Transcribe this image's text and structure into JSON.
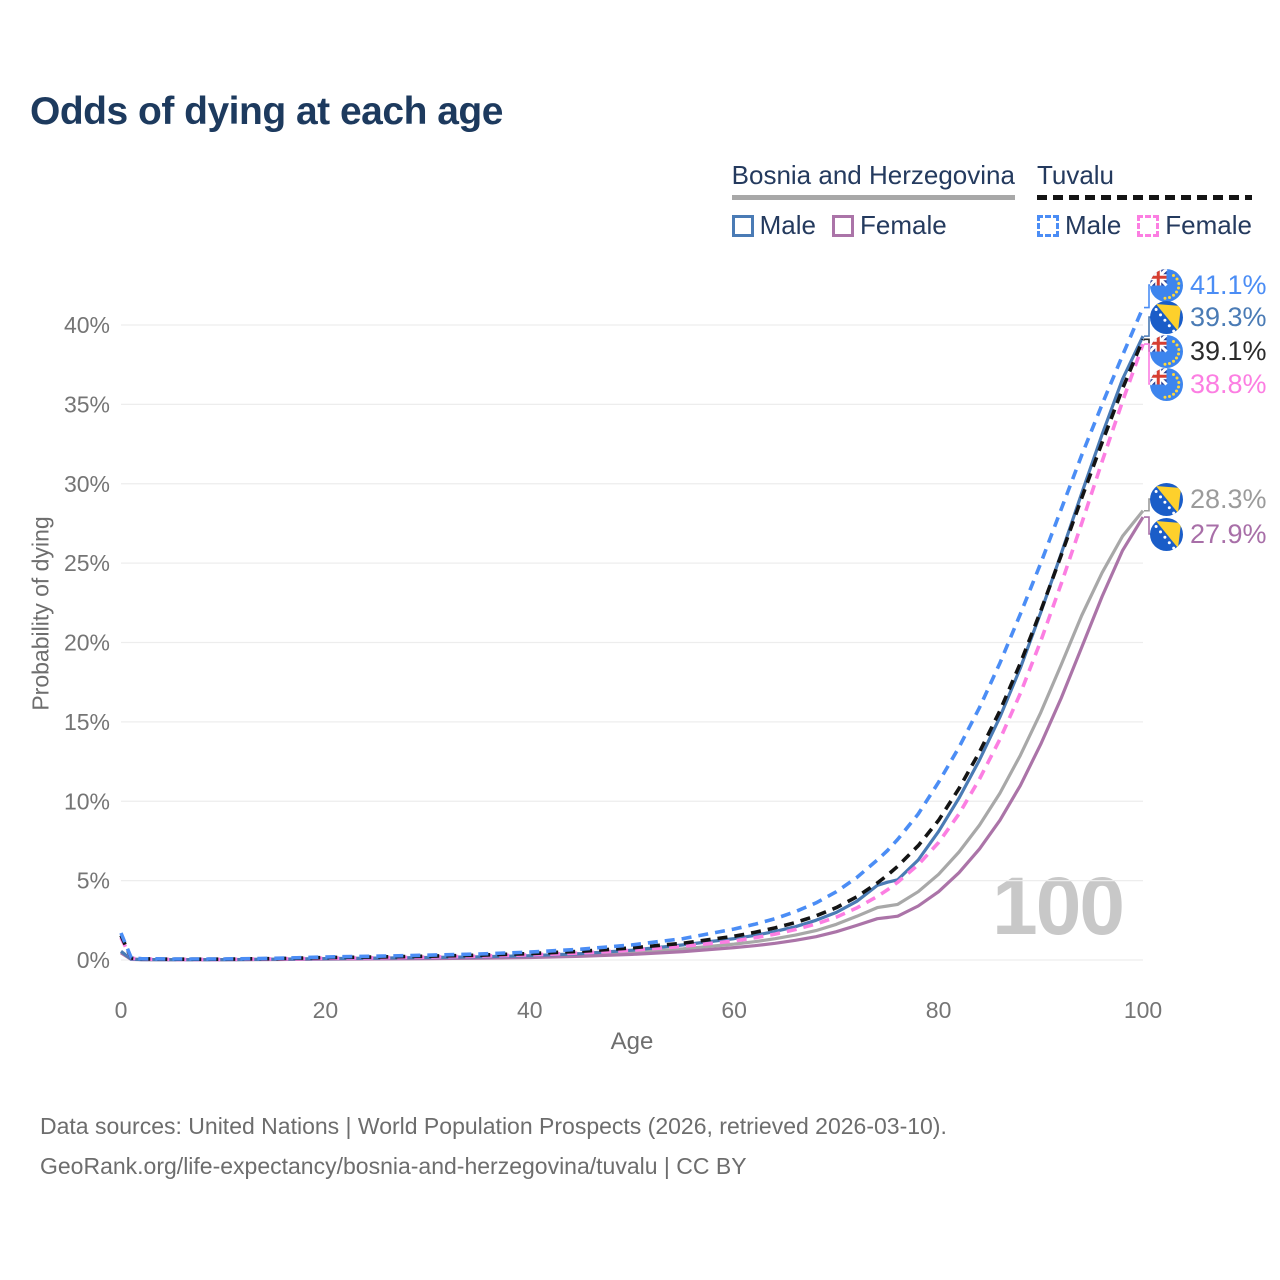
{
  "header": {
    "title": "Odds of dying at each age",
    "title_color": "#1d3a5e"
  },
  "legend": {
    "groups": [
      {
        "label": "Bosnia and Herzegovina",
        "line_style": "solid",
        "line_color": "#a8a8a8",
        "items": [
          {
            "label": "Male",
            "sex": "male",
            "color": "#4a7bb5"
          },
          {
            "label": "Female",
            "sex": "female",
            "color": "#ab74a8"
          }
        ]
      },
      {
        "label": "Tuvalu",
        "line_style": "dashed",
        "line_color": "#141414",
        "items": [
          {
            "label": "Male",
            "sex": "male",
            "color": "#4b8df5"
          },
          {
            "label": "Female",
            "sex": "female",
            "color": "#fc7ee2"
          }
        ]
      }
    ]
  },
  "chart_data": {
    "type": "line",
    "title": "Odds of dying at each age",
    "axis": {
      "x_label": "Age",
      "y_label": "Probability of dying"
    },
    "xlim": [
      0,
      100
    ],
    "ylim": [
      0,
      43
    ],
    "grid": "horizontal",
    "legend_position": "top-right",
    "watermark": "100",
    "x_ticks": [
      {
        "value": 0,
        "label": "0"
      },
      {
        "value": 20,
        "label": "20"
      },
      {
        "value": 40,
        "label": "40"
      },
      {
        "value": 60,
        "label": "60"
      },
      {
        "value": 80,
        "label": "80"
      },
      {
        "value": 100,
        "label": "100"
      }
    ],
    "y_ticks": [
      {
        "value": 0,
        "label": "0%"
      },
      {
        "value": 5,
        "label": "5%"
      },
      {
        "value": 10,
        "label": "10%"
      },
      {
        "value": 15,
        "label": "15%"
      },
      {
        "value": 20,
        "label": "20%"
      },
      {
        "value": 25,
        "label": "25%"
      },
      {
        "value": 30,
        "label": "30%"
      },
      {
        "value": 35,
        "label": "35%"
      },
      {
        "value": 40,
        "label": "40%"
      }
    ],
    "ages": [
      0,
      1,
      2,
      5,
      10,
      15,
      20,
      25,
      30,
      35,
      40,
      45,
      50,
      55,
      60,
      62,
      64,
      66,
      68,
      70,
      72,
      74,
      75,
      76,
      78,
      80,
      82,
      84,
      86,
      88,
      90,
      92,
      94,
      96,
      98,
      100
    ],
    "series": [
      {
        "id": "bih_both",
        "name": "Bosnia and Herzegovina — Both sexes",
        "country": "Bosnia and Herzegovina",
        "sex": "both",
        "color": "#a8a8a8",
        "dashed": false,
        "end_value_pct": 28.3,
        "end_label": "28.3%",
        "values": [
          0.5,
          0.05,
          0.03,
          0.02,
          0.02,
          0.04,
          0.07,
          0.09,
          0.12,
          0.16,
          0.21,
          0.31,
          0.47,
          0.7,
          1.0,
          1.15,
          1.34,
          1.57,
          1.85,
          2.25,
          2.75,
          3.3,
          3.4,
          3.5,
          4.3,
          5.4,
          6.8,
          8.5,
          10.5,
          12.9,
          15.6,
          18.6,
          21.7,
          24.4,
          26.7,
          28.3
        ]
      },
      {
        "id": "bih_female",
        "name": "Bosnia and Herzegovina — Female",
        "country": "Bosnia and Herzegovina",
        "sex": "female",
        "color": "#ab74a8",
        "dashed": false,
        "end_value_pct": 27.9,
        "end_label": "27.9%",
        "values": [
          0.45,
          0.04,
          0.02,
          0.02,
          0.02,
          0.03,
          0.05,
          0.07,
          0.09,
          0.12,
          0.16,
          0.23,
          0.35,
          0.53,
          0.78,
          0.9,
          1.05,
          1.24,
          1.47,
          1.78,
          2.18,
          2.6,
          2.68,
          2.76,
          3.4,
          4.3,
          5.5,
          7.0,
          8.8,
          11.0,
          13.6,
          16.5,
          19.7,
          22.9,
          25.8,
          27.9
        ]
      },
      {
        "id": "bih_male",
        "name": "Bosnia and Herzegovina — Male",
        "country": "Bosnia and Herzegovina",
        "sex": "male",
        "color": "#4a7bb5",
        "dashed": false,
        "end_value_pct": 39.3,
        "end_label": "39.3%",
        "values": [
          0.55,
          0.05,
          0.03,
          0.02,
          0.02,
          0.05,
          0.09,
          0.12,
          0.16,
          0.2,
          0.27,
          0.4,
          0.62,
          0.95,
          1.35,
          1.55,
          1.8,
          2.1,
          2.5,
          3.0,
          3.7,
          4.7,
          4.9,
          5.05,
          6.3,
          8.1,
          10.2,
          12.6,
          15.3,
          18.4,
          21.9,
          25.6,
          29.4,
          33.1,
          36.6,
          39.3
        ]
      },
      {
        "id": "tuvalu_female",
        "name": "Tuvalu — Female",
        "country": "Tuvalu",
        "sex": "female",
        "color": "#fc7ee2",
        "dashed": true,
        "end_value_pct": 38.8,
        "end_label": "38.8%",
        "values": [
          1.4,
          0.11,
          0.06,
          0.04,
          0.04,
          0.07,
          0.11,
          0.14,
          0.18,
          0.24,
          0.32,
          0.44,
          0.61,
          0.86,
          1.2,
          1.4,
          1.63,
          1.92,
          2.27,
          2.7,
          3.28,
          4.0,
          4.42,
          4.9,
          6.0,
          7.4,
          9.2,
          11.4,
          13.9,
          16.8,
          20.1,
          23.7,
          27.5,
          31.4,
          35.2,
          38.8
        ]
      },
      {
        "id": "tuvalu_both",
        "name": "Tuvalu — Both sexes",
        "country": "Tuvalu",
        "sex": "both",
        "color": "#141414",
        "dashed": true,
        "end_value_pct": 39.1,
        "end_label": "39.1%",
        "values": [
          1.55,
          0.12,
          0.07,
          0.05,
          0.05,
          0.09,
          0.15,
          0.19,
          0.24,
          0.3,
          0.4,
          0.55,
          0.76,
          1.06,
          1.5,
          1.74,
          2.02,
          2.36,
          2.78,
          3.3,
          3.98,
          4.85,
          5.35,
          5.9,
          7.2,
          8.8,
          10.8,
          13.1,
          15.7,
          18.7,
          22.0,
          25.5,
          29.1,
          32.6,
          36.0,
          39.1
        ]
      },
      {
        "id": "tuvalu_male",
        "name": "Tuvalu — Male",
        "country": "Tuvalu",
        "sex": "male",
        "color": "#4b8df5",
        "dashed": true,
        "end_value_pct": 41.1,
        "end_label": "41.1%",
        "values": [
          1.7,
          0.14,
          0.08,
          0.06,
          0.06,
          0.11,
          0.19,
          0.24,
          0.3,
          0.38,
          0.5,
          0.68,
          0.95,
          1.35,
          1.95,
          2.25,
          2.6,
          3.05,
          3.6,
          4.3,
          5.2,
          6.3,
          6.9,
          7.6,
          9.2,
          11.2,
          13.4,
          15.9,
          18.7,
          21.8,
          25.0,
          28.4,
          31.8,
          35.0,
          38.1,
          41.1
        ]
      }
    ],
    "end_labels": [
      {
        "text": "41.1%",
        "series": "tuvalu_male",
        "flag": "tuvalu",
        "color": "#4b8df5"
      },
      {
        "text": "39.3%",
        "series": "bih_male",
        "flag": "bosnia",
        "color": "#4a7bb5"
      },
      {
        "text": "39.1%",
        "series": "tuvalu_both",
        "flag": "tuvalu",
        "color": "#2b2b2b"
      },
      {
        "text": "38.8%",
        "series": "tuvalu_female",
        "flag": "tuvalu",
        "color": "#fc7ee2"
      },
      {
        "text": "28.3%",
        "series": "bih_both",
        "flag": "bosnia",
        "color": "#9b9b9b"
      },
      {
        "text": "27.9%",
        "series": "bih_female",
        "flag": "bosnia",
        "color": "#a86fa8"
      }
    ],
    "style": {
      "grid_color": "#ededed",
      "tick_text_color": "#757575",
      "watermark_color": "#c8c8c8"
    }
  },
  "footer": {
    "line1": "Data sources: United Nations | World Population Prospects (2026, retrieved 2026-03-10).",
    "line2": "GeoRank.org/life-expectancy/bosnia-and-herzegovina/tuvalu | CC BY"
  }
}
